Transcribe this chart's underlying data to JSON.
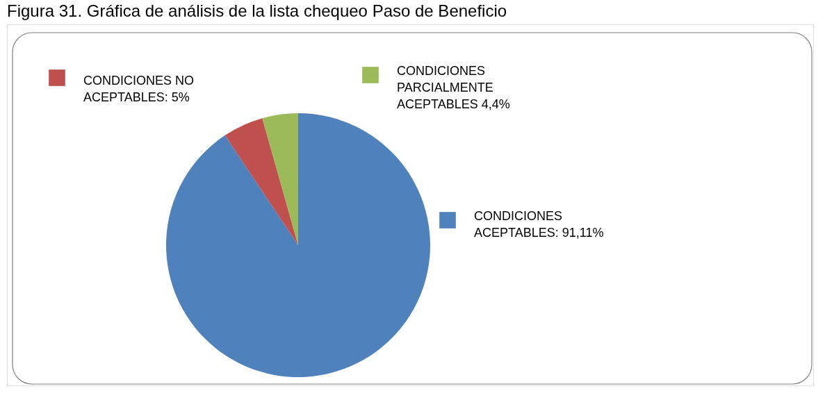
{
  "chart_data": {
    "type": "pie",
    "title": "Figura 31. Gráfica de análisis de la lista chequeo Paso de Beneficio",
    "categories": [
      "CONDICIONES\nACEPTABLES: 91,11%",
      "CONDICIONES NO\nACEPTABLES: 5%",
      "CONDICIONES\nPARCIALMENTE\nACEPTABLES 4,4%"
    ],
    "values": [
      91.11,
      5,
      4.4
    ],
    "colors": [
      "#4f81bd",
      "#c0504d",
      "#9bbb59"
    ],
    "legend": "top"
  }
}
